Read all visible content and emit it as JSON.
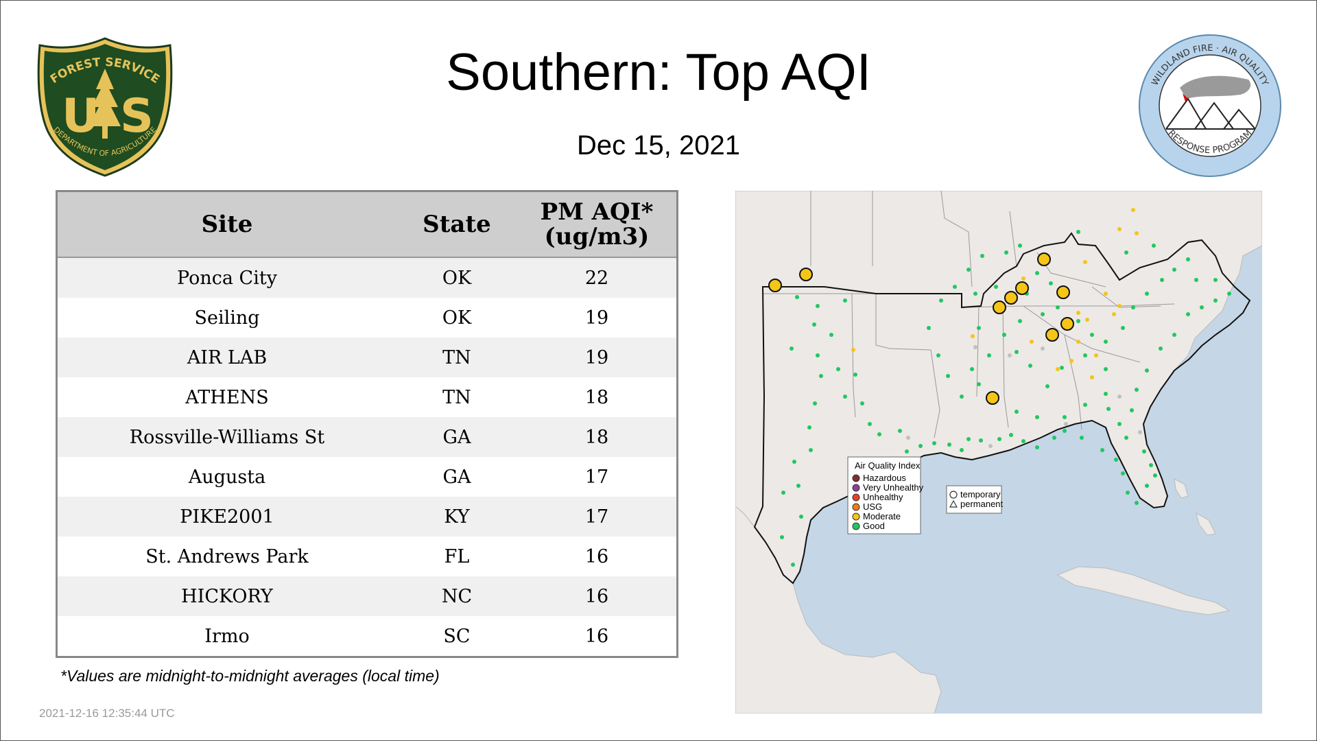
{
  "page": {
    "title": "Southern: Top AQI",
    "date": "Dec 15, 2021",
    "footnote": "*Values are midnight-to-midnight averages (local time)",
    "timestamp": "2021-12-16 12:35:44 UTC"
  },
  "logos": {
    "forest_service": {
      "top_text": "FOREST SERVICE",
      "letter_left": "U",
      "letter_right": "S",
      "bottom_text": "DEPARTMENT OF AGRICULTURE"
    },
    "wildland_fire": {
      "top_text": "WILDLAND FIRE · AIR QUALITY",
      "bottom_text": "RESPONSE PROGRAM"
    }
  },
  "table": {
    "headers": {
      "site": "Site",
      "state": "State",
      "pm_line1": "PM AQI*",
      "pm_line2": "(ug/m3)"
    },
    "rows": [
      {
        "site": "Ponca City",
        "state": "OK",
        "value": "22"
      },
      {
        "site": "Seiling",
        "state": "OK",
        "value": "19"
      },
      {
        "site": "AIR LAB",
        "state": "TN",
        "value": "19"
      },
      {
        "site": "ATHENS",
        "state": "TN",
        "value": "18"
      },
      {
        "site": "Rossville-Williams St",
        "state": "GA",
        "value": "18"
      },
      {
        "site": "Augusta",
        "state": "GA",
        "value": "17"
      },
      {
        "site": "PIKE2001",
        "state": "KY",
        "value": "17"
      },
      {
        "site": "St. Andrews Park",
        "state": "FL",
        "value": "16"
      },
      {
        "site": "HICKORY",
        "state": "NC",
        "value": "16"
      },
      {
        "site": "Irmo",
        "state": "SC",
        "value": "16"
      }
    ]
  },
  "map": {
    "legend": {
      "title": "Air Quality Index",
      "items": [
        {
          "label": "Hazardous",
          "color": "#7e2f2f"
        },
        {
          "label": "Very Unhealthy",
          "color": "#8f3f97"
        },
        {
          "label": "Unhealthy",
          "color": "#e8402a"
        },
        {
          "label": "USG",
          "color": "#f07d1a"
        },
        {
          "label": "Moderate",
          "color": "#f5c518"
        },
        {
          "label": "Good",
          "color": "#20c860"
        }
      ]
    },
    "shape_legend": {
      "circle": "temporary",
      "triangle": "permanent"
    },
    "colors": {
      "land": "#ece9e6",
      "water": "#c5d6e6",
      "good": "#20c860",
      "moderate": "#f5c518",
      "missing": "#c0c0c0"
    }
  }
}
